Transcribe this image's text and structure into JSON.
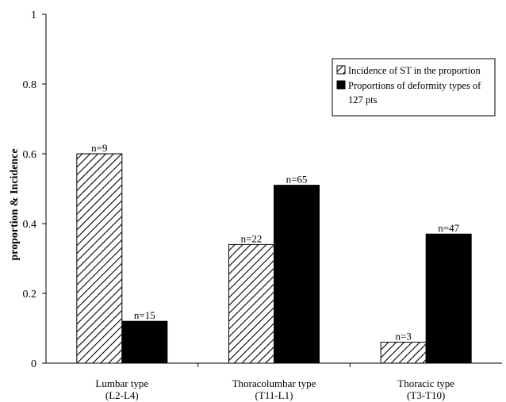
{
  "chart_data": {
    "type": "bar",
    "ylabel": "proportion & Incidence",
    "ylim": [
      0,
      1
    ],
    "yticks": [
      0,
      0.2,
      0.4,
      0.6,
      0.8,
      1
    ],
    "ytick_labels": [
      "0",
      "0.2",
      "0.4",
      "0.6",
      "0.8",
      "1"
    ],
    "categories": [
      [
        "Lumbar type",
        "(L2-L4)"
      ],
      [
        "Thoracolumbar type",
        "(T11-L1)"
      ],
      [
        "Thoracic type",
        "(T3-T10)"
      ]
    ],
    "series": [
      {
        "name": "Incidence of ST in the proportion",
        "pattern": "hatched",
        "values": [
          0.6,
          0.34,
          0.06
        ],
        "labels": [
          "n=9",
          "n=22",
          "n=3"
        ]
      },
      {
        "name": [
          "Proportions of deformity types of",
          "127 pts"
        ],
        "pattern": "solid",
        "color": "#000000",
        "values": [
          0.12,
          0.51,
          0.37
        ],
        "labels": [
          "n=15",
          "n=65",
          "n=47"
        ]
      }
    ],
    "legend_position": "top-right",
    "grid": false
  }
}
